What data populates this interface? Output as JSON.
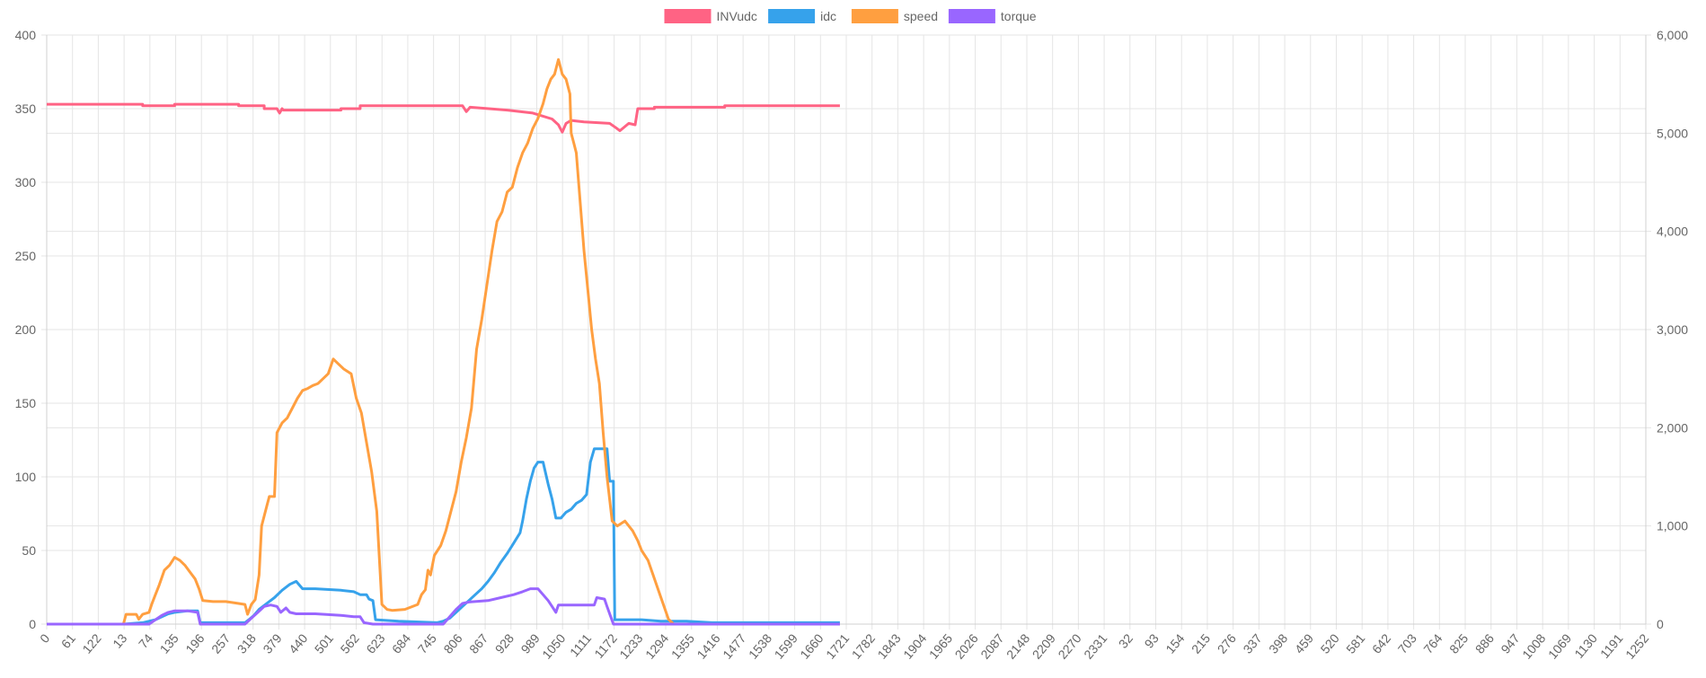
{
  "chart_data": {
    "type": "line",
    "grid": true,
    "legend_position": "top",
    "x_labels": [
      "0",
      "61",
      "122",
      "13",
      "74",
      "135",
      "196",
      "257",
      "318",
      "379",
      "440",
      "501",
      "562",
      "623",
      "684",
      "745",
      "806",
      "867",
      "928",
      "989",
      "1050",
      "1111",
      "1172",
      "1233",
      "1294",
      "1355",
      "1416",
      "1477",
      "1538",
      "1599",
      "1660",
      "1721",
      "1782",
      "1843",
      "1904",
      "1965",
      "2026",
      "2087",
      "2148",
      "2209",
      "2270",
      "2331",
      "32",
      "93",
      "154",
      "215",
      "276",
      "337",
      "398",
      "459",
      "520",
      "581",
      "642",
      "703",
      "764",
      "825",
      "886",
      "947",
      "1008",
      "1069",
      "1130",
      "1191",
      "1252"
    ],
    "x_index_max": 1250,
    "y_left": {
      "min": 0,
      "max": 400,
      "ticks": [
        "0",
        "50",
        "100",
        "150",
        "200",
        "250",
        "300",
        "350",
        "400"
      ]
    },
    "y_right": {
      "min": 0,
      "max": 6000,
      "ticks": [
        "0",
        "1,000",
        "2,000",
        "3,000",
        "4,000",
        "5,000",
        "6,000"
      ]
    },
    "series": [
      {
        "name": "INVudc",
        "color": "#ff6384",
        "axis": "left",
        "points": [
          [
            0,
            353
          ],
          [
            75,
            353
          ],
          [
            75,
            352
          ],
          [
            100,
            352
          ],
          [
            100,
            353
          ],
          [
            150,
            353
          ],
          [
            150,
            352
          ],
          [
            170,
            352
          ],
          [
            170,
            350
          ],
          [
            180,
            350
          ],
          [
            182,
            347
          ],
          [
            184,
            350
          ],
          [
            185,
            349
          ],
          [
            230,
            349
          ],
          [
            230,
            350
          ],
          [
            245,
            350
          ],
          [
            245,
            352
          ],
          [
            325,
            352
          ],
          [
            328,
            348
          ],
          [
            331,
            351
          ],
          [
            360,
            349
          ],
          [
            380,
            347
          ],
          [
            395,
            343
          ],
          [
            400,
            339
          ],
          [
            403,
            334
          ],
          [
            406,
            340
          ],
          [
            410,
            342
          ],
          [
            420,
            341
          ],
          [
            440,
            340
          ],
          [
            445,
            337
          ],
          [
            448,
            335
          ],
          [
            455,
            340
          ],
          [
            460,
            339
          ],
          [
            462,
            350
          ],
          [
            475,
            350
          ],
          [
            475,
            351
          ],
          [
            530,
            351
          ],
          [
            530,
            352
          ],
          [
            620,
            352
          ]
        ]
      },
      {
        "name": "idc",
        "color": "#36a2eb",
        "axis": "left",
        "points": [
          [
            0,
            0
          ],
          [
            60,
            0
          ],
          [
            75,
            1
          ],
          [
            85,
            3
          ],
          [
            90,
            5
          ],
          [
            95,
            7
          ],
          [
            100,
            8
          ],
          [
            110,
            9
          ],
          [
            118,
            9
          ],
          [
            120,
            1
          ],
          [
            155,
            1
          ],
          [
            158,
            3
          ],
          [
            162,
            6
          ],
          [
            166,
            10
          ],
          [
            172,
            14
          ],
          [
            178,
            18
          ],
          [
            184,
            23
          ],
          [
            190,
            27
          ],
          [
            195,
            29
          ],
          [
            200,
            24
          ],
          [
            210,
            24
          ],
          [
            230,
            23
          ],
          [
            240,
            22
          ],
          [
            245,
            20
          ],
          [
            250,
            20
          ],
          [
            252,
            17
          ],
          [
            255,
            16
          ],
          [
            257,
            3
          ],
          [
            275,
            2
          ],
          [
            305,
            1
          ],
          [
            310,
            2
          ],
          [
            315,
            4
          ],
          [
            320,
            8
          ],
          [
            325,
            12
          ],
          [
            330,
            16
          ],
          [
            335,
            20
          ],
          [
            340,
            24
          ],
          [
            345,
            29
          ],
          [
            350,
            35
          ],
          [
            355,
            42
          ],
          [
            360,
            48
          ],
          [
            365,
            55
          ],
          [
            370,
            62
          ],
          [
            372,
            70
          ],
          [
            375,
            85
          ],
          [
            378,
            97
          ],
          [
            381,
            106
          ],
          [
            384,
            110
          ],
          [
            388,
            110
          ],
          [
            392,
            95
          ],
          [
            395,
            85
          ],
          [
            398,
            72
          ],
          [
            402,
            72
          ],
          [
            406,
            76
          ],
          [
            410,
            78
          ],
          [
            414,
            82
          ],
          [
            418,
            84
          ],
          [
            422,
            88
          ],
          [
            425,
            110
          ],
          [
            428,
            119
          ],
          [
            438,
            119
          ],
          [
            440,
            97
          ],
          [
            443,
            97
          ],
          [
            444,
            3
          ],
          [
            450,
            3
          ],
          [
            465,
            3
          ],
          [
            480,
            2
          ],
          [
            500,
            2
          ],
          [
            520,
            1
          ],
          [
            560,
            1
          ],
          [
            620,
            1
          ]
        ]
      },
      {
        "name": "speed",
        "color": "#ff9f40",
        "axis": "right",
        "points": [
          [
            0,
            0
          ],
          [
            60,
            0
          ],
          [
            62,
            100
          ],
          [
            70,
            100
          ],
          [
            72,
            50
          ],
          [
            75,
            100
          ],
          [
            80,
            120
          ],
          [
            82,
            200
          ],
          [
            85,
            300
          ],
          [
            88,
            400
          ],
          [
            92,
            550
          ],
          [
            96,
            600
          ],
          [
            100,
            680
          ],
          [
            104,
            650
          ],
          [
            108,
            600
          ],
          [
            112,
            530
          ],
          [
            116,
            460
          ],
          [
            119,
            360
          ],
          [
            122,
            240
          ],
          [
            130,
            230
          ],
          [
            140,
            230
          ],
          [
            150,
            210
          ],
          [
            155,
            200
          ],
          [
            157,
            100
          ],
          [
            160,
            200
          ],
          [
            163,
            250
          ],
          [
            166,
            500
          ],
          [
            168,
            1000
          ],
          [
            172,
            1200
          ],
          [
            174,
            1300
          ],
          [
            178,
            1300
          ],
          [
            180,
            1950
          ],
          [
            184,
            2050
          ],
          [
            188,
            2100
          ],
          [
            192,
            2200
          ],
          [
            196,
            2300
          ],
          [
            200,
            2380
          ],
          [
            204,
            2400
          ],
          [
            208,
            2430
          ],
          [
            212,
            2450
          ],
          [
            216,
            2500
          ],
          [
            220,
            2550
          ],
          [
            224,
            2700
          ],
          [
            228,
            2650
          ],
          [
            232,
            2600
          ],
          [
            238,
            2550
          ],
          [
            242,
            2300
          ],
          [
            246,
            2150
          ],
          [
            250,
            1850
          ],
          [
            254,
            1550
          ],
          [
            258,
            1150
          ],
          [
            262,
            200
          ],
          [
            266,
            150
          ],
          [
            270,
            140
          ],
          [
            280,
            150
          ],
          [
            290,
            200
          ],
          [
            293,
            300
          ],
          [
            296,
            350
          ],
          [
            298,
            550
          ],
          [
            300,
            500
          ],
          [
            303,
            700
          ],
          [
            308,
            800
          ],
          [
            312,
            950
          ],
          [
            316,
            1150
          ],
          [
            320,
            1350
          ],
          [
            324,
            1650
          ],
          [
            328,
            1900
          ],
          [
            332,
            2200
          ],
          [
            336,
            2800
          ],
          [
            340,
            3100
          ],
          [
            344,
            3450
          ],
          [
            348,
            3800
          ],
          [
            352,
            4100
          ],
          [
            356,
            4200
          ],
          [
            360,
            4400
          ],
          [
            364,
            4450
          ],
          [
            368,
            4650
          ],
          [
            372,
            4800
          ],
          [
            376,
            4900
          ],
          [
            380,
            5050
          ],
          [
            384,
            5150
          ],
          [
            388,
            5300
          ],
          [
            391,
            5450
          ],
          [
            394,
            5550
          ],
          [
            397,
            5600
          ],
          [
            400,
            5750
          ],
          [
            403,
            5600
          ],
          [
            406,
            5550
          ],
          [
            409,
            5400
          ],
          [
            410,
            5000
          ],
          [
            412,
            4900
          ],
          [
            414,
            4800
          ],
          [
            417,
            4300
          ],
          [
            420,
            3800
          ],
          [
            423,
            3400
          ],
          [
            426,
            3000
          ],
          [
            429,
            2700
          ],
          [
            432,
            2450
          ],
          [
            435,
            1950
          ],
          [
            438,
            1500
          ],
          [
            442,
            1050
          ],
          [
            446,
            1000
          ],
          [
            452,
            1050
          ],
          [
            458,
            950
          ],
          [
            462,
            850
          ],
          [
            465,
            750
          ],
          [
            470,
            650
          ],
          [
            474,
            500
          ],
          [
            478,
            350
          ],
          [
            482,
            200
          ],
          [
            486,
            50
          ],
          [
            490,
            0
          ],
          [
            620,
            0
          ]
        ]
      },
      {
        "name": "torque",
        "color": "#9966ff",
        "axis": "left",
        "points": [
          [
            0,
            0
          ],
          [
            80,
            0
          ],
          [
            85,
            3
          ],
          [
            90,
            6
          ],
          [
            95,
            8
          ],
          [
            100,
            9
          ],
          [
            110,
            9
          ],
          [
            118,
            8
          ],
          [
            120,
            0
          ],
          [
            155,
            0
          ],
          [
            160,
            4
          ],
          [
            165,
            8
          ],
          [
            170,
            12
          ],
          [
            175,
            13
          ],
          [
            180,
            12
          ],
          [
            183,
            8
          ],
          [
            187,
            11
          ],
          [
            190,
            8
          ],
          [
            195,
            7
          ],
          [
            210,
            7
          ],
          [
            230,
            6
          ],
          [
            240,
            5
          ],
          [
            245,
            5
          ],
          [
            248,
            1
          ],
          [
            255,
            0
          ],
          [
            310,
            0
          ],
          [
            315,
            5
          ],
          [
            320,
            10
          ],
          [
            325,
            14
          ],
          [
            330,
            15
          ],
          [
            345,
            16
          ],
          [
            355,
            18
          ],
          [
            365,
            20
          ],
          [
            372,
            22
          ],
          [
            378,
            24
          ],
          [
            384,
            24
          ],
          [
            388,
            20
          ],
          [
            392,
            16
          ],
          [
            395,
            12
          ],
          [
            398,
            8
          ],
          [
            400,
            13
          ],
          [
            420,
            13
          ],
          [
            428,
            13
          ],
          [
            430,
            18
          ],
          [
            436,
            17
          ],
          [
            438,
            12
          ],
          [
            443,
            0
          ],
          [
            620,
            0
          ]
        ]
      }
    ]
  }
}
